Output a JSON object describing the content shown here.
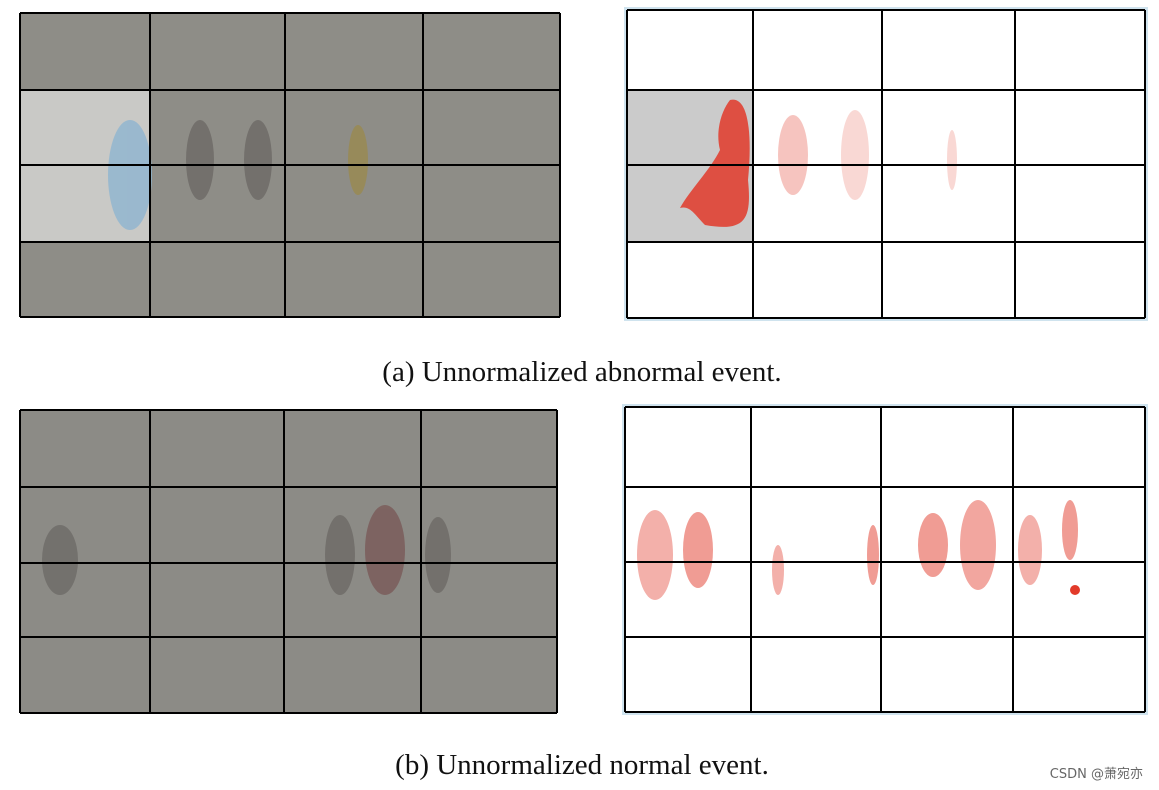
{
  "figure": {
    "captions": [
      "(a) Unnormalized abnormal event.",
      "(b) Unnormalized normal event."
    ]
  },
  "watermark": "CSDN @萧宛亦"
}
